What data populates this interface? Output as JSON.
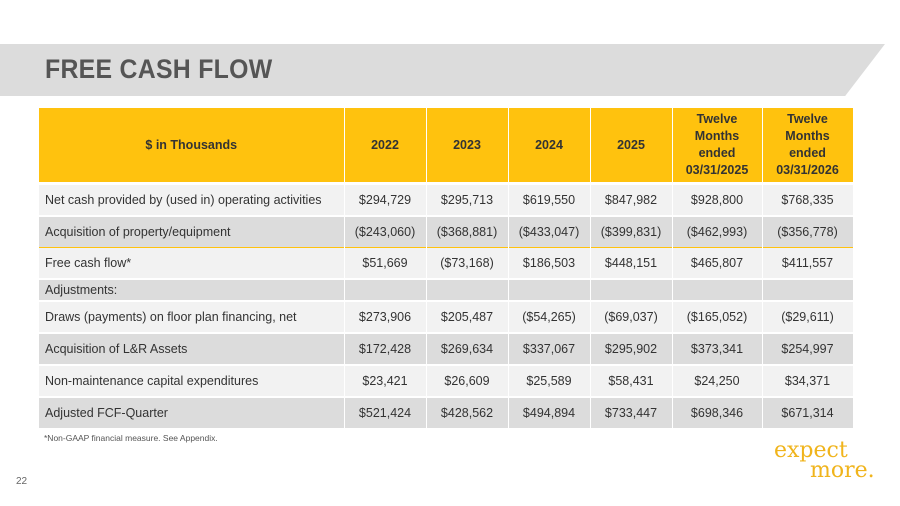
{
  "title": "FREE CASH FLOW",
  "table": {
    "headers": [
      "$ in Thousands",
      "2022",
      "2023",
      "2024",
      "2025",
      "Twelve Months ended 03/31/2025",
      "Twelve Months ended 03/31/2026"
    ],
    "rows": [
      {
        "label": "Net cash provided by (used in) operating activities",
        "values": [
          "$294,729",
          "$295,713",
          "$619,550",
          "$847,982",
          "$928,800",
          "$768,335"
        ]
      },
      {
        "label": "Acquisition of property/equipment",
        "values": [
          "($243,060)",
          "($368,881)",
          "($433,047)",
          "($399,831)",
          "($462,993)",
          "($356,778)"
        ]
      },
      {
        "label": "Free cash flow*",
        "values": [
          "$51,669",
          "($73,168)",
          "$186,503",
          "$448,151",
          "$465,807",
          "$411,557"
        ]
      },
      {
        "label": "Adjustments:",
        "values": [
          "",
          "",
          "",
          "",
          "",
          ""
        ]
      },
      {
        "label": "Draws (payments) on floor plan financing, net",
        "values": [
          "$273,906",
          "$205,487",
          "($54,265)",
          "($69,037)",
          "($165,052)",
          "($29,611)"
        ]
      },
      {
        "label": "Acquisition of L&R Assets",
        "values": [
          "$172,428",
          "$269,634",
          "$337,067",
          "$295,902",
          "$373,341",
          "$254,997"
        ]
      },
      {
        "label": "Non-maintenance capital expenditures",
        "values": [
          "$23,421",
          "$26,609",
          "$25,589",
          "$58,431",
          "$24,250",
          "$34,371"
        ]
      },
      {
        "label": "Adjusted FCF-Quarter",
        "values": [
          "$521,424",
          "$428,562",
          "$494,894",
          "$733,447",
          "$698,346",
          "$671,314"
        ]
      }
    ]
  },
  "footnote": "*Non-GAAP financial measure.  See Appendix.",
  "page_number": "22",
  "logo": {
    "line1": "expect",
    "line2": "more."
  },
  "colors": {
    "accent": "#ffc20e",
    "band": "#dcdcdc",
    "logo": "#f0b41c"
  }
}
